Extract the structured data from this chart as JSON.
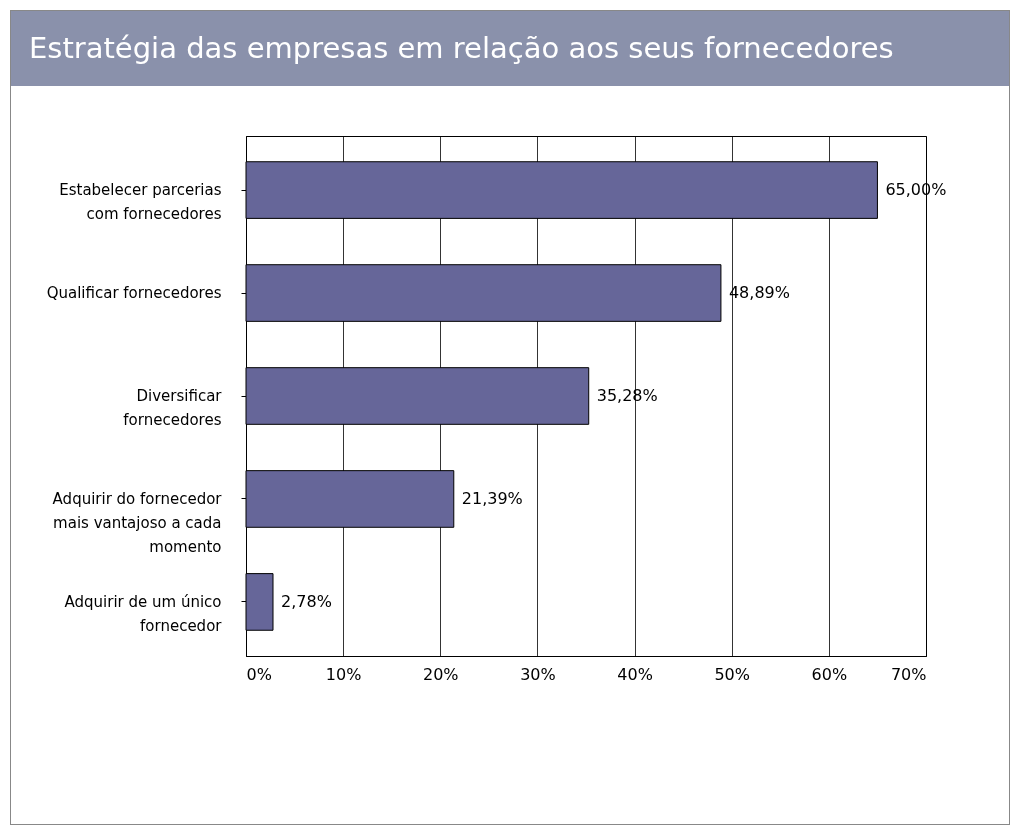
{
  "chart_data": {
    "type": "bar",
    "title": "Estratégia das empresas em relação aos seus fornecedores",
    "orientation": "horizontal",
    "categories": [
      "Estabelecer parcerias com fornecedores",
      "Qualificar fornecedores",
      "Diversificar fornecedores",
      "Adquirir do fornecedor mais vantajoso a cada momento",
      "Adquirir de um único fornecedor"
    ],
    "values": [
      65.0,
      48.89,
      35.28,
      21.39,
      2.78
    ],
    "value_labels": [
      "65,00%",
      "48,89%",
      "35,28%",
      "21,39%",
      "2,78%"
    ],
    "color": "#666699",
    "xlim": [
      0,
      70
    ],
    "xticks": [
      {
        "value": 0,
        "label": "0%"
      },
      {
        "value": 10,
        "label": "10%"
      },
      {
        "value": 20,
        "label": "20%"
      },
      {
        "value": 30,
        "label": "30%"
      },
      {
        "value": 40,
        "label": "40%"
      },
      {
        "value": 50,
        "label": "50%"
      },
      {
        "value": 60,
        "label": "60%"
      },
      {
        "value": 70,
        "label": "70%"
      }
    ],
    "grid": "x"
  }
}
